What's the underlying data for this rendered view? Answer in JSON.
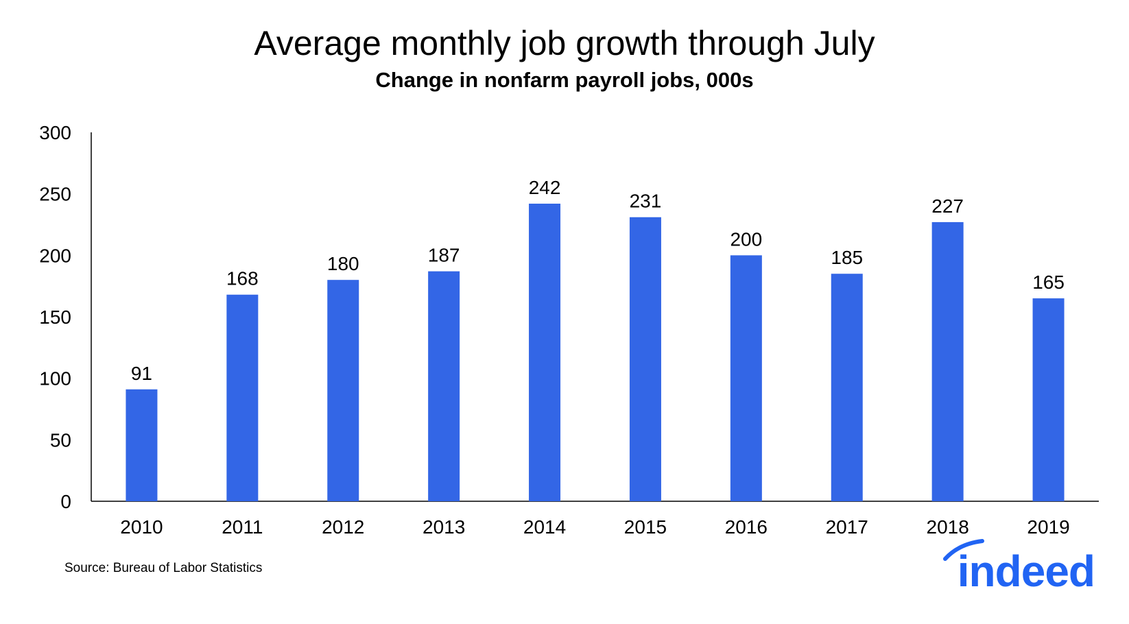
{
  "title": "Average monthly job growth through July",
  "subtitle": "Change in nonfarm payroll jobs, 000s",
  "source": "Source: Bureau of Labor Statistics",
  "logo": {
    "text": "indeed",
    "color": "#2164f3"
  },
  "colors": {
    "bar": "#3366e6",
    "axis": "#000000"
  },
  "chart_data": {
    "type": "bar",
    "categories": [
      "2010",
      "2011",
      "2012",
      "2013",
      "2014",
      "2015",
      "2016",
      "2017",
      "2018",
      "2019"
    ],
    "values": [
      91,
      168,
      180,
      187,
      242,
      231,
      200,
      185,
      227,
      165
    ],
    "title": "Average monthly job growth through July",
    "subtitle": "Change in nonfarm payroll jobs, 000s",
    "xlabel": "",
    "ylabel": "",
    "ylim": [
      0,
      300
    ],
    "yticks": [
      0,
      50,
      100,
      150,
      200,
      250,
      300
    ],
    "data_labels": true,
    "grid": false,
    "legend": "none"
  }
}
